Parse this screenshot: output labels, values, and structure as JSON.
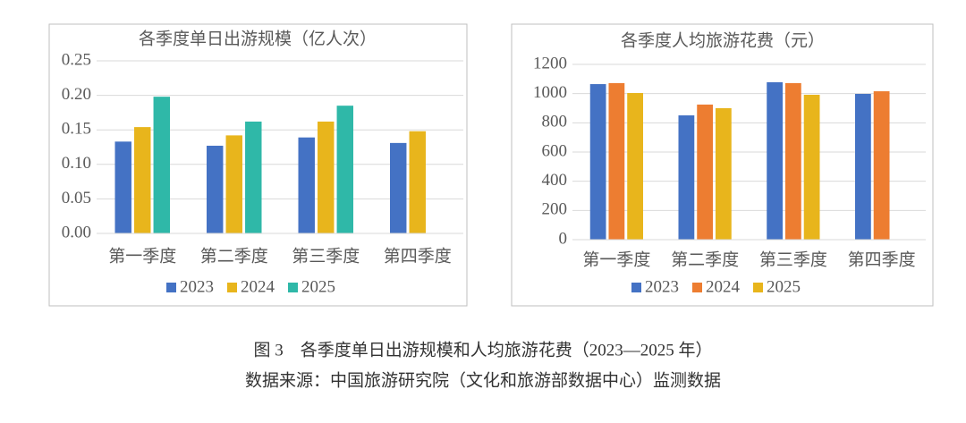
{
  "chart_data": [
    {
      "type": "bar",
      "title": "各季度单日出游规模（亿人次）",
      "categories": [
        "第一季度",
        "第二季度",
        "第三季度",
        "第四季度"
      ],
      "series": [
        {
          "name": "2023",
          "color": "#4472c4",
          "values": [
            0.133,
            0.127,
            0.139,
            0.131
          ]
        },
        {
          "name": "2024",
          "color": "#e8b51c",
          "values": [
            0.154,
            0.142,
            0.162,
            0.148
          ]
        },
        {
          "name": "2025",
          "color": "#2fb8a8",
          "values": [
            0.198,
            0.162,
            0.185,
            null
          ]
        }
      ],
      "ylim": [
        0,
        0.25
      ],
      "yticks": [
        {
          "value": 0,
          "label": "0.00"
        },
        {
          "value": 0.05,
          "label": "0.05"
        },
        {
          "value": 0.1,
          "label": "0.10"
        },
        {
          "value": 0.15,
          "label": "0.15"
        },
        {
          "value": 0.2,
          "label": "0.20"
        },
        {
          "value": 0.25,
          "label": "0.25"
        }
      ],
      "grid": true,
      "legend": "bottom"
    },
    {
      "type": "bar",
      "title": "各季度人均旅游花费（元）",
      "categories": [
        "第一季度",
        "第二季度",
        "第三季度",
        "第四季度"
      ],
      "series": [
        {
          "name": "2023",
          "color": "#4472c4",
          "values": [
            1065,
            851,
            1078,
            998
          ]
        },
        {
          "name": "2024",
          "color": "#ed7d31",
          "values": [
            1072,
            925,
            1072,
            1016
          ]
        },
        {
          "name": "2025",
          "color": "#e8b51c",
          "values": [
            1004,
            900,
            992,
            null
          ]
        }
      ],
      "ylim": [
        0,
        1200
      ],
      "yticks": [
        0,
        200,
        400,
        600,
        800,
        1000,
        1200
      ],
      "grid": true,
      "legend": "bottom"
    }
  ],
  "caption": {
    "figure": "图 3　各季度单日出游规模和人均旅游花费（2023—2025 年）",
    "source": "数据来源：中国旅游研究院（文化和旅游部数据中心）监测数据"
  }
}
